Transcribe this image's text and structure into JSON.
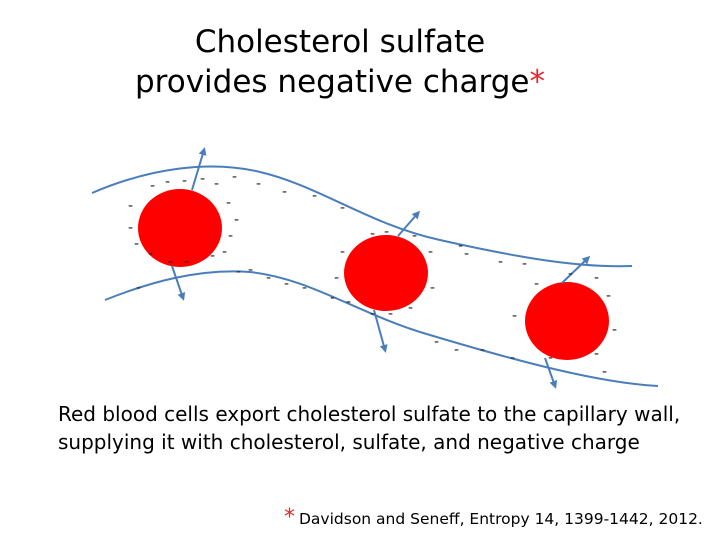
{
  "title": {
    "line1": "Cholesterol sulfate",
    "line2": "provides negative charge",
    "marker": "*"
  },
  "diagram": {
    "vessel_color": "#4a7ebb",
    "cell_color": "#ff0000",
    "cell_count": 3,
    "charge_symbol": "-"
  },
  "caption": "Red blood cells export cholesterol sulfate to the capillary wall, supplying it with cholesterol, sulfate, and negative charge",
  "citation": {
    "marker": "*",
    "text": "Davidson and Seneff, Entropy 14, 1399-1442, 2012."
  }
}
